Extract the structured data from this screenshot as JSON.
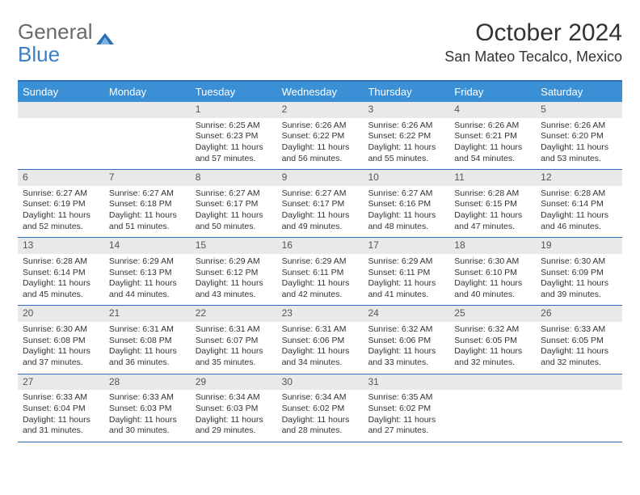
{
  "logo": {
    "general": "General",
    "blue": "Blue"
  },
  "title": {
    "month_year": "October 2024",
    "location": "San Mateo Tecalco, Mexico"
  },
  "colors": {
    "header_bg": "#3b8fd4",
    "border": "#2a6fb5",
    "daynum_bg": "#e8e9ea",
    "text": "#333333",
    "logo_gray": "#6a6a6a",
    "logo_blue": "#3b7fc4"
  },
  "dow": [
    "Sunday",
    "Monday",
    "Tuesday",
    "Wednesday",
    "Thursday",
    "Friday",
    "Saturday"
  ],
  "weeks": [
    [
      null,
      null,
      {
        "n": "1",
        "sr": "Sunrise: 6:25 AM",
        "ss": "Sunset: 6:23 PM",
        "dl": "Daylight: 11 hours and 57 minutes."
      },
      {
        "n": "2",
        "sr": "Sunrise: 6:26 AM",
        "ss": "Sunset: 6:22 PM",
        "dl": "Daylight: 11 hours and 56 minutes."
      },
      {
        "n": "3",
        "sr": "Sunrise: 6:26 AM",
        "ss": "Sunset: 6:22 PM",
        "dl": "Daylight: 11 hours and 55 minutes."
      },
      {
        "n": "4",
        "sr": "Sunrise: 6:26 AM",
        "ss": "Sunset: 6:21 PM",
        "dl": "Daylight: 11 hours and 54 minutes."
      },
      {
        "n": "5",
        "sr": "Sunrise: 6:26 AM",
        "ss": "Sunset: 6:20 PM",
        "dl": "Daylight: 11 hours and 53 minutes."
      }
    ],
    [
      {
        "n": "6",
        "sr": "Sunrise: 6:27 AM",
        "ss": "Sunset: 6:19 PM",
        "dl": "Daylight: 11 hours and 52 minutes."
      },
      {
        "n": "7",
        "sr": "Sunrise: 6:27 AM",
        "ss": "Sunset: 6:18 PM",
        "dl": "Daylight: 11 hours and 51 minutes."
      },
      {
        "n": "8",
        "sr": "Sunrise: 6:27 AM",
        "ss": "Sunset: 6:17 PM",
        "dl": "Daylight: 11 hours and 50 minutes."
      },
      {
        "n": "9",
        "sr": "Sunrise: 6:27 AM",
        "ss": "Sunset: 6:17 PM",
        "dl": "Daylight: 11 hours and 49 minutes."
      },
      {
        "n": "10",
        "sr": "Sunrise: 6:27 AM",
        "ss": "Sunset: 6:16 PM",
        "dl": "Daylight: 11 hours and 48 minutes."
      },
      {
        "n": "11",
        "sr": "Sunrise: 6:28 AM",
        "ss": "Sunset: 6:15 PM",
        "dl": "Daylight: 11 hours and 47 minutes."
      },
      {
        "n": "12",
        "sr": "Sunrise: 6:28 AM",
        "ss": "Sunset: 6:14 PM",
        "dl": "Daylight: 11 hours and 46 minutes."
      }
    ],
    [
      {
        "n": "13",
        "sr": "Sunrise: 6:28 AM",
        "ss": "Sunset: 6:14 PM",
        "dl": "Daylight: 11 hours and 45 minutes."
      },
      {
        "n": "14",
        "sr": "Sunrise: 6:29 AM",
        "ss": "Sunset: 6:13 PM",
        "dl": "Daylight: 11 hours and 44 minutes."
      },
      {
        "n": "15",
        "sr": "Sunrise: 6:29 AM",
        "ss": "Sunset: 6:12 PM",
        "dl": "Daylight: 11 hours and 43 minutes."
      },
      {
        "n": "16",
        "sr": "Sunrise: 6:29 AM",
        "ss": "Sunset: 6:11 PM",
        "dl": "Daylight: 11 hours and 42 minutes."
      },
      {
        "n": "17",
        "sr": "Sunrise: 6:29 AM",
        "ss": "Sunset: 6:11 PM",
        "dl": "Daylight: 11 hours and 41 minutes."
      },
      {
        "n": "18",
        "sr": "Sunrise: 6:30 AM",
        "ss": "Sunset: 6:10 PM",
        "dl": "Daylight: 11 hours and 40 minutes."
      },
      {
        "n": "19",
        "sr": "Sunrise: 6:30 AM",
        "ss": "Sunset: 6:09 PM",
        "dl": "Daylight: 11 hours and 39 minutes."
      }
    ],
    [
      {
        "n": "20",
        "sr": "Sunrise: 6:30 AM",
        "ss": "Sunset: 6:08 PM",
        "dl": "Daylight: 11 hours and 37 minutes."
      },
      {
        "n": "21",
        "sr": "Sunrise: 6:31 AM",
        "ss": "Sunset: 6:08 PM",
        "dl": "Daylight: 11 hours and 36 minutes."
      },
      {
        "n": "22",
        "sr": "Sunrise: 6:31 AM",
        "ss": "Sunset: 6:07 PM",
        "dl": "Daylight: 11 hours and 35 minutes."
      },
      {
        "n": "23",
        "sr": "Sunrise: 6:31 AM",
        "ss": "Sunset: 6:06 PM",
        "dl": "Daylight: 11 hours and 34 minutes."
      },
      {
        "n": "24",
        "sr": "Sunrise: 6:32 AM",
        "ss": "Sunset: 6:06 PM",
        "dl": "Daylight: 11 hours and 33 minutes."
      },
      {
        "n": "25",
        "sr": "Sunrise: 6:32 AM",
        "ss": "Sunset: 6:05 PM",
        "dl": "Daylight: 11 hours and 32 minutes."
      },
      {
        "n": "26",
        "sr": "Sunrise: 6:33 AM",
        "ss": "Sunset: 6:05 PM",
        "dl": "Daylight: 11 hours and 32 minutes."
      }
    ],
    [
      {
        "n": "27",
        "sr": "Sunrise: 6:33 AM",
        "ss": "Sunset: 6:04 PM",
        "dl": "Daylight: 11 hours and 31 minutes."
      },
      {
        "n": "28",
        "sr": "Sunrise: 6:33 AM",
        "ss": "Sunset: 6:03 PM",
        "dl": "Daylight: 11 hours and 30 minutes."
      },
      {
        "n": "29",
        "sr": "Sunrise: 6:34 AM",
        "ss": "Sunset: 6:03 PM",
        "dl": "Daylight: 11 hours and 29 minutes."
      },
      {
        "n": "30",
        "sr": "Sunrise: 6:34 AM",
        "ss": "Sunset: 6:02 PM",
        "dl": "Daylight: 11 hours and 28 minutes."
      },
      {
        "n": "31",
        "sr": "Sunrise: 6:35 AM",
        "ss": "Sunset: 6:02 PM",
        "dl": "Daylight: 11 hours and 27 minutes."
      },
      null,
      null
    ]
  ]
}
